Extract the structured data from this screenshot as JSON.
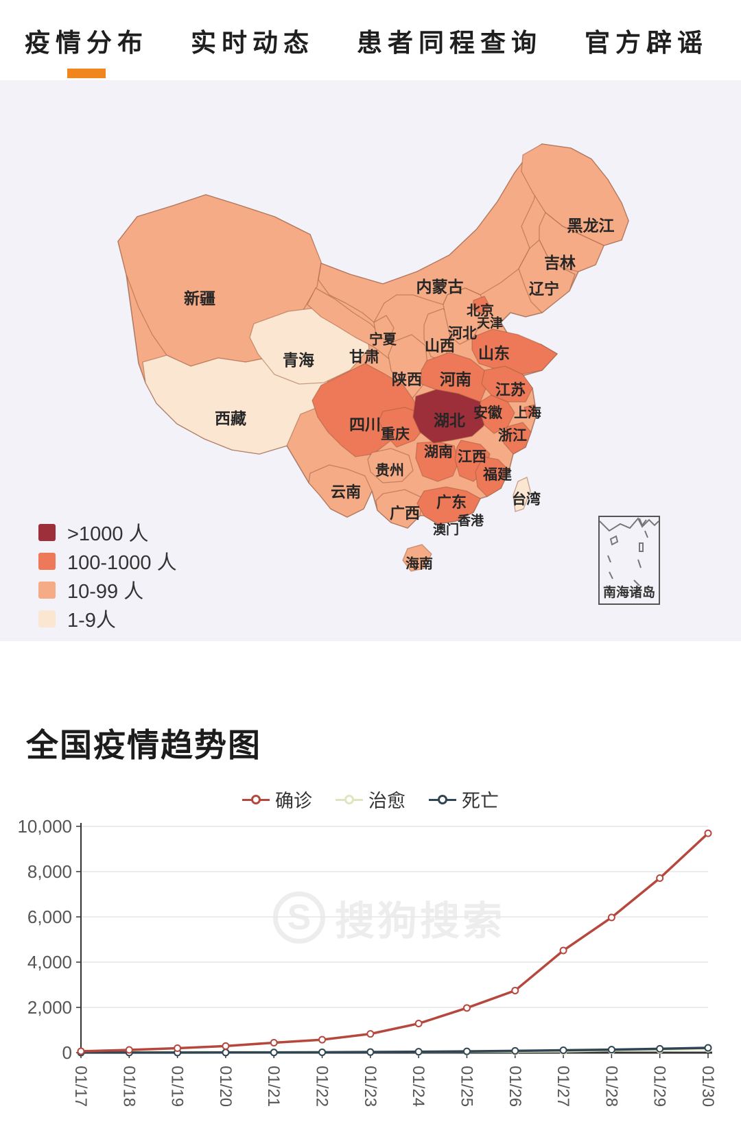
{
  "nav": {
    "tabs": [
      {
        "label": "疫情分布",
        "active": true
      },
      {
        "label": "实时动态",
        "active": false
      },
      {
        "label": "患者同程查询",
        "active": false
      },
      {
        "label": "官方辟谣",
        "active": false
      }
    ]
  },
  "map": {
    "legend": [
      {
        "level": "gt1000",
        "label": ">1000 人",
        "color": "#9d2f3a"
      },
      {
        "level": "c100",
        "label": "100-1000 人",
        "color": "#ee7959"
      },
      {
        "level": "c10",
        "label": "10-99 人",
        "color": "#f5ab85"
      },
      {
        "level": "c1",
        "label": "1-9人",
        "color": "#fbe6d2"
      }
    ],
    "inset_label": "南海诸岛",
    "provinces": [
      {
        "name": "黑龙江",
        "level": "c10"
      },
      {
        "name": "吉林",
        "level": "c10"
      },
      {
        "name": "辽宁",
        "level": "c10"
      },
      {
        "name": "内蒙古",
        "level": "c10"
      },
      {
        "name": "北京",
        "level": "c100"
      },
      {
        "name": "天津",
        "level": "c10"
      },
      {
        "name": "河北",
        "level": "c10"
      },
      {
        "name": "山西",
        "level": "c10"
      },
      {
        "name": "宁夏",
        "level": "c10"
      },
      {
        "name": "甘肃",
        "level": "c10"
      },
      {
        "name": "陕西",
        "level": "c10"
      },
      {
        "name": "青海",
        "level": "c1"
      },
      {
        "name": "新疆",
        "level": "c10"
      },
      {
        "name": "西藏",
        "level": "c1"
      },
      {
        "name": "山东",
        "level": "c100"
      },
      {
        "name": "河南",
        "level": "c100"
      },
      {
        "name": "江苏",
        "level": "c100"
      },
      {
        "name": "上海",
        "level": "c100"
      },
      {
        "name": "安徽",
        "level": "c100"
      },
      {
        "name": "湖北",
        "level": "gt1000"
      },
      {
        "name": "浙江",
        "level": "c100"
      },
      {
        "name": "重庆",
        "level": "c100"
      },
      {
        "name": "四川",
        "level": "c100"
      },
      {
        "name": "湖南",
        "level": "c100"
      },
      {
        "name": "江西",
        "level": "c100"
      },
      {
        "name": "贵州",
        "level": "c10"
      },
      {
        "name": "福建",
        "level": "c100"
      },
      {
        "name": "云南",
        "level": "c10"
      },
      {
        "name": "广东",
        "level": "c100"
      },
      {
        "name": "广西",
        "level": "c10"
      },
      {
        "name": "台湾",
        "level": "c1"
      },
      {
        "name": "香港",
        "level": "c10"
      },
      {
        "name": "澳门",
        "level": "c10"
      },
      {
        "name": "海南",
        "level": "c10"
      }
    ]
  },
  "trend": {
    "watermark": "搜狗搜索",
    "watermark_logo": "S"
  },
  "chart_data": {
    "type": "line",
    "title": "全国疫情趋势图",
    "x": [
      "01/17",
      "01/18",
      "01/19",
      "01/20",
      "01/21",
      "01/22",
      "01/23",
      "01/24",
      "01/25",
      "01/26",
      "01/27",
      "01/28",
      "01/29",
      "01/30"
    ],
    "series": [
      {
        "name": "确诊",
        "color": "#b5473d",
        "values": [
          62,
          121,
          198,
          291,
          440,
          571,
          830,
          1287,
          1975,
          2744,
          4515,
          5974,
          7711,
          9692
        ]
      },
      {
        "name": "治愈",
        "color": "#e0e5c1",
        "values": [
          19,
          24,
          25,
          25,
          28,
          28,
          34,
          38,
          49,
          51,
          60,
          103,
          124,
          171
        ]
      },
      {
        "name": "死亡",
        "color": "#2f4554",
        "values": [
          2,
          3,
          3,
          6,
          9,
          17,
          25,
          41,
          56,
          80,
          106,
          132,
          170,
          213
        ]
      }
    ],
    "ylim": [
      0,
      10000
    ],
    "yticks": [
      "0",
      "2,000",
      "4,000",
      "6,000",
      "8,000",
      "10,000"
    ],
    "grid": true,
    "legend_position": "top",
    "xlabel": "",
    "ylabel": ""
  }
}
